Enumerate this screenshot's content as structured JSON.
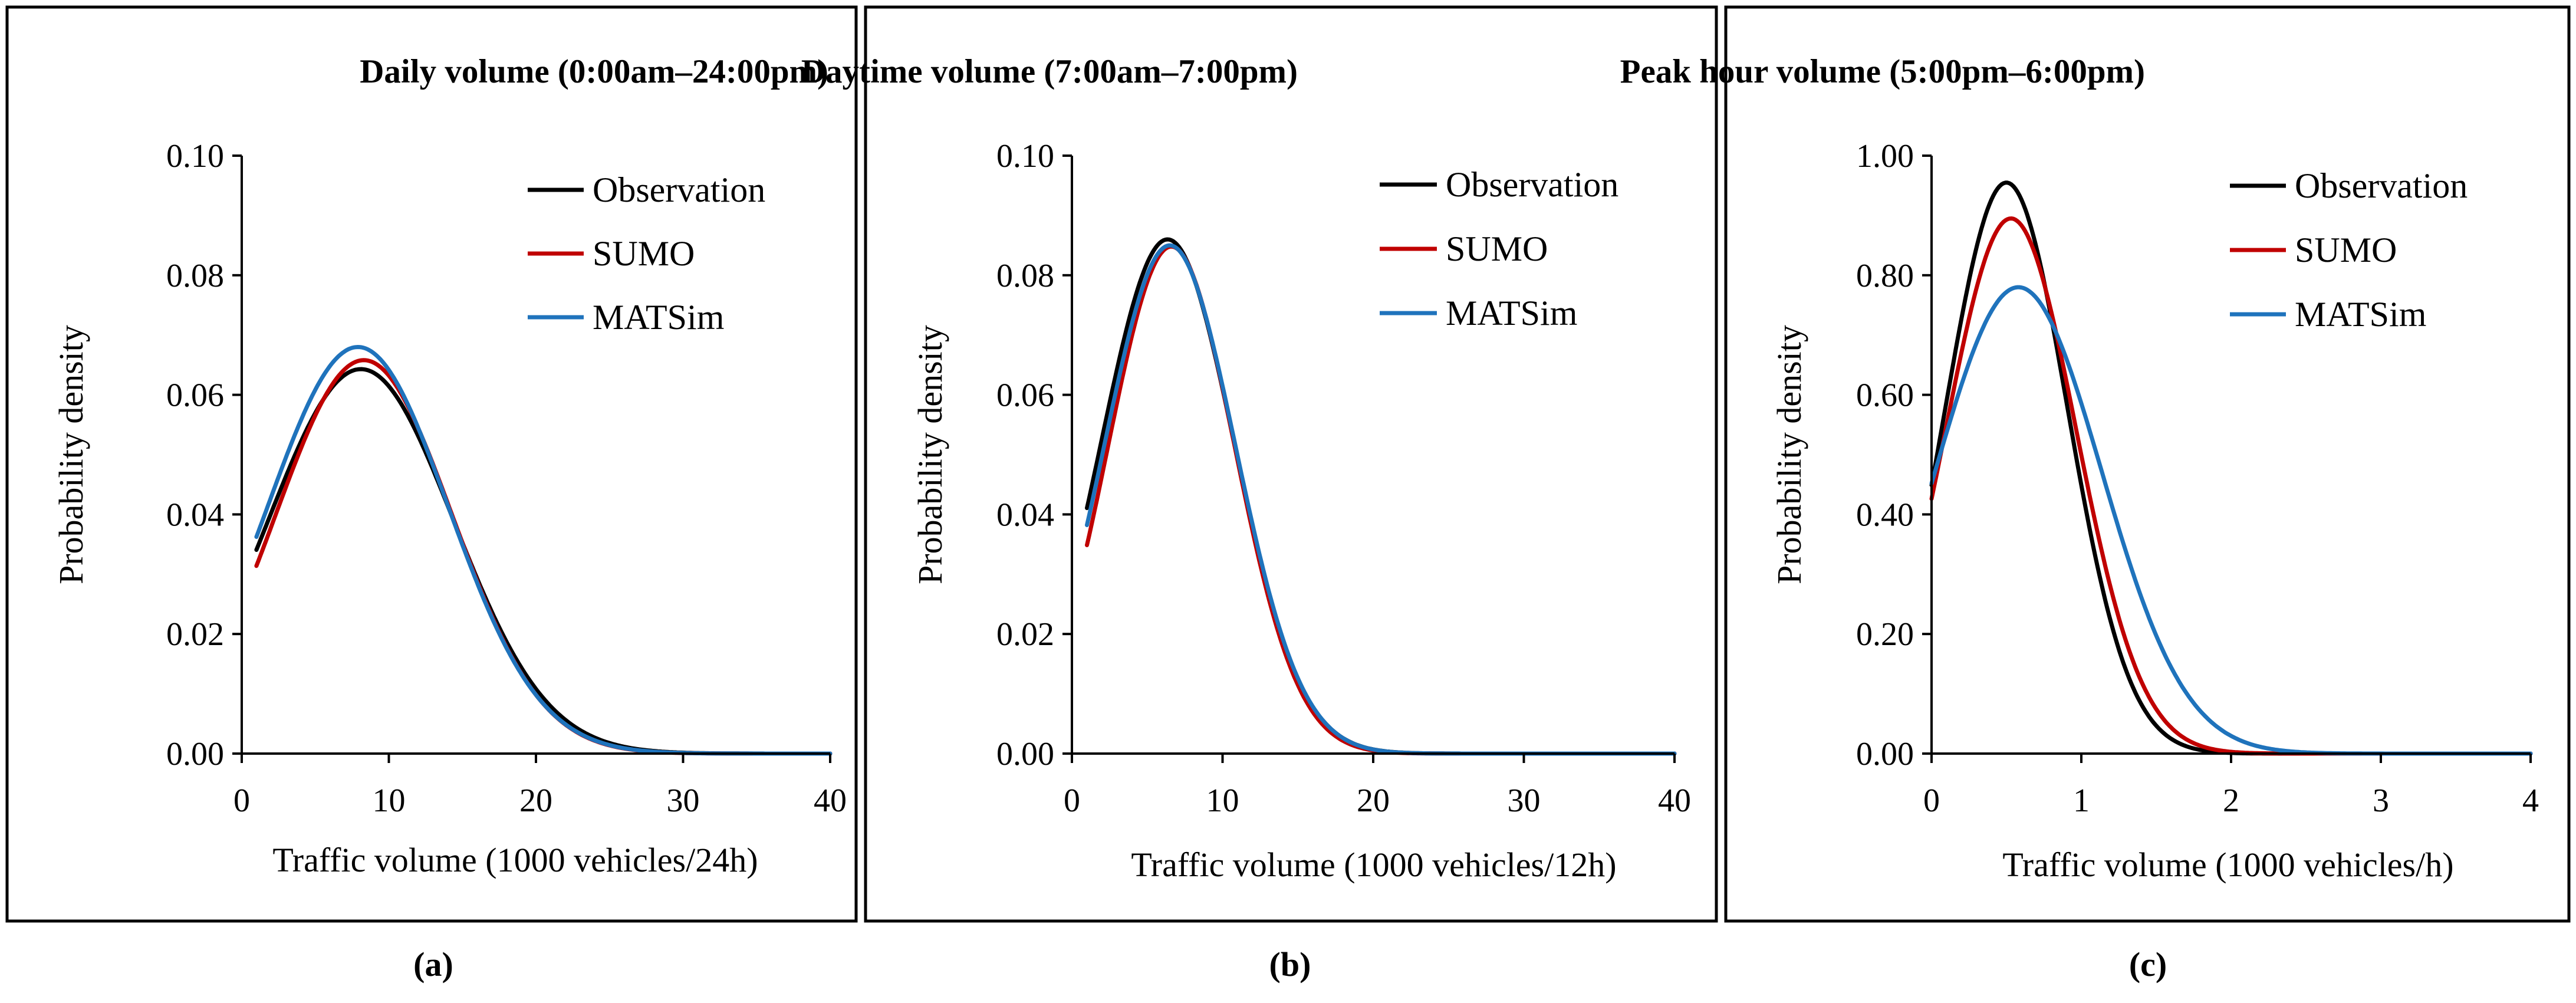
{
  "chart_data": [
    {
      "type": "line",
      "panel_label": "(a)",
      "title": "Daily volume (0:00am–24:00pm)",
      "xlabel": "Traffic volume (1000 vehicles/24h)",
      "ylabel": "Probability density",
      "xlim": [
        0,
        40
      ],
      "ylim": [
        0,
        0.1
      ],
      "xticks": [
        "0",
        "10",
        "20",
        "30",
        "40"
      ],
      "xtick_values": [
        0,
        10,
        20,
        30,
        40
      ],
      "yticks": [
        "0.00",
        "0.02",
        "0.04",
        "0.06",
        "0.08",
        "0.10"
      ],
      "ytick_values": [
        0,
        0.02,
        0.04,
        0.06,
        0.08,
        0.1
      ],
      "legend": "top-right",
      "grid": false,
      "series": [
        {
          "name": "Observation",
          "color": "#000000",
          "curve": "gaussian",
          "mean": 8.1,
          "sd": 6.3,
          "peak": 0.0643,
          "x_start": 1,
          "x_end": 40
        },
        {
          "name": "SUMO",
          "color": "#c00000",
          "curve": "gaussian",
          "mean": 8.3,
          "sd": 6.0,
          "peak": 0.0658,
          "x_start": 1,
          "x_end": 40
        },
        {
          "name": "MATSim",
          "color": "#1f73bc",
          "curve": "gaussian",
          "mean": 7.9,
          "sd": 6.15,
          "peak": 0.068,
          "x_start": 1,
          "x_end": 40
        }
      ]
    },
    {
      "type": "line",
      "panel_label": "(b)",
      "title": "Daytime volume (7:00am–7:00pm)",
      "xlabel": "Traffic volume (1000 vehicles/12h)",
      "ylabel": "Probability density",
      "xlim": [
        0,
        40
      ],
      "ylim": [
        0,
        0.1
      ],
      "xticks": [
        "0",
        "10",
        "20",
        "30",
        "40"
      ],
      "xtick_values": [
        0,
        10,
        20,
        30,
        40
      ],
      "yticks": [
        "0.00",
        "0.02",
        "0.04",
        "0.06",
        "0.08",
        "0.10"
      ],
      "ytick_values": [
        0,
        0.02,
        0.04,
        0.06,
        0.08,
        0.1
      ],
      "legend": "top-right",
      "grid": false,
      "series": [
        {
          "name": "Observation",
          "color": "#000000",
          "curve": "gaussian",
          "mean": 6.35,
          "sd": 4.4,
          "peak": 0.086,
          "x_start": 1,
          "x_end": 40
        },
        {
          "name": "SUMO",
          "color": "#c00000",
          "curve": "gaussian",
          "mean": 6.6,
          "sd": 4.2,
          "peak": 0.0848,
          "x_start": 1,
          "x_end": 40
        },
        {
          "name": "MATSim",
          "color": "#1f73bc",
          "curve": "gaussian",
          "mean": 6.5,
          "sd": 4.35,
          "peak": 0.085,
          "x_start": 1,
          "x_end": 40
        }
      ]
    },
    {
      "type": "line",
      "panel_label": "(c)",
      "title": "Peak hour volume (5:00pm–6:00pm)",
      "xlabel": "Traffic volume (1000 vehicles/h)",
      "ylabel": "Probability density",
      "xlim": [
        0,
        4
      ],
      "ylim": [
        0,
        1
      ],
      "xticks": [
        "0",
        "1",
        "2",
        "3",
        "4"
      ],
      "xtick_values": [
        0,
        1,
        2,
        3,
        4
      ],
      "yticks": [
        "0.00",
        "0.20",
        "0.40",
        "0.60",
        "0.80",
        "1.00"
      ],
      "ytick_values": [
        0,
        0.2,
        0.4,
        0.6,
        0.8,
        1.0
      ],
      "legend": "top-right",
      "grid": false,
      "series": [
        {
          "name": "Observation",
          "color": "#000000",
          "curve": "gaussian",
          "mean": 0.5,
          "sd": 0.407,
          "peak": 0.955,
          "x_start": 0,
          "x_end": 4
        },
        {
          "name": "SUMO",
          "color": "#c00000",
          "curve": "gaussian",
          "mean": 0.53,
          "sd": 0.435,
          "peak": 0.895,
          "x_start": 0,
          "x_end": 4
        },
        {
          "name": "MATSim",
          "color": "#1f73bc",
          "curve": "gaussian",
          "mean": 0.58,
          "sd": 0.555,
          "peak": 0.78,
          "x_start": 0,
          "x_end": 4
        }
      ]
    }
  ]
}
